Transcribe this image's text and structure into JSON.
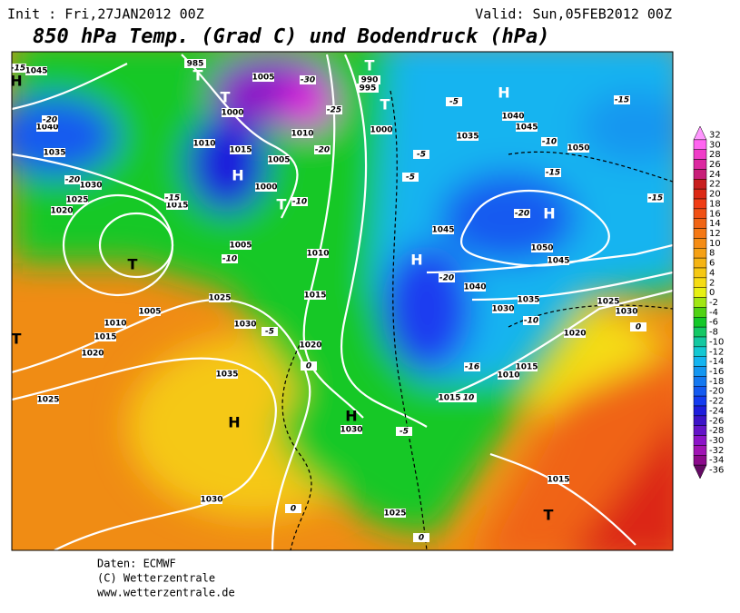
{
  "header": {
    "init": "Init : Fri,27JAN2012  00Z",
    "valid": "Valid: Sun,05FEB2012  00Z",
    "title": "850 hPa Temp. (Grad C) und Bodendruck (hPa)"
  },
  "pressure_centers": [
    "H",
    "H",
    "H",
    "H",
    "H",
    "H",
    "H",
    "T",
    "T",
    "T",
    "T",
    "T",
    "T",
    "T",
    "T"
  ],
  "isobar_labels": [
    "1045",
    "1040",
    "1035",
    "1030",
    "1025",
    "1020",
    "1015",
    "1010",
    "1005",
    "1010",
    "1015",
    "1020",
    "1025",
    "1030",
    "1035",
    "1030",
    "1025",
    "1020",
    "1015",
    "1010",
    "1005",
    "1040",
    "1045",
    "1050",
    "1035",
    "1045",
    "1050",
    "1045",
    "1040",
    "1035",
    "1030",
    "1025",
    "1030",
    "1020",
    "1015",
    "1010",
    "1015",
    "1030",
    "1025",
    "1015",
    "985",
    "990",
    "995",
    "1005",
    "1000",
    "1015",
    "1005",
    "1000",
    "1010",
    "1000"
  ],
  "temperature_labels": [
    "-30",
    "-25",
    "-20",
    "-20",
    "-20",
    "-15",
    "-15",
    "-10",
    "-15",
    "-15",
    "-20",
    "-20",
    "-10",
    "-16",
    "-5",
    "-5",
    "0",
    "0",
    "0",
    "0",
    "-15",
    "-10",
    "-10",
    "-5",
    "-5",
    "-5",
    "10"
  ],
  "colorbar": {
    "labels": [
      32,
      30,
      28,
      26,
      24,
      22,
      20,
      18,
      16,
      14,
      12,
      10,
      8,
      6,
      4,
      2,
      0,
      -2,
      -4,
      -6,
      -8,
      -10,
      -12,
      -14,
      -16,
      -18,
      -20,
      -22,
      -24,
      -26,
      -28,
      -30,
      -32,
      -34,
      -36
    ],
    "colors": [
      "#ff96ff",
      "#ff64f0",
      "#f03cc8",
      "#dc28a0",
      "#c81e78",
      "#c81e1e",
      "#dc2814",
      "#f03c14",
      "#f05014",
      "#f06414",
      "#f57814",
      "#f58c14",
      "#f5a014",
      "#f5b414",
      "#f5c814",
      "#f5dc14",
      "#e6f014",
      "#a0e614",
      "#50d214",
      "#14c828",
      "#14c864",
      "#14c8a0",
      "#14c8d2",
      "#14b4f0",
      "#1496f0",
      "#1478f0",
      "#145af0",
      "#143cf0",
      "#1e1edc",
      "#3c14c8",
      "#6414c8",
      "#8c14c8",
      "#a014b4",
      "#8c0a8c",
      "#640a64"
    ]
  },
  "footer": {
    "source": "Daten: ECMWF",
    "copyright": "(C) Wetterzentrale",
    "url": "www.wetterzentrale.de"
  }
}
